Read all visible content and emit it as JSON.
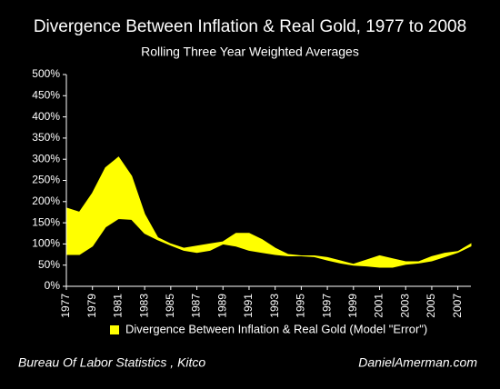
{
  "chart_data": {
    "type": "range_area",
    "title": "Divergence Between Inflation & Real Gold, 1977 to 2008",
    "subtitle": "Rolling Three Year Weighted Averages",
    "source": "Bureau Of Labor Statistics , Kitco",
    "credit": "DanielAmerman.com",
    "x": [
      1977,
      1978,
      1979,
      1980,
      1981,
      1982,
      1983,
      1984,
      1985,
      1986,
      1987,
      1988,
      1989,
      1990,
      1991,
      1992,
      1993,
      1994,
      1995,
      1996,
      1997,
      1998,
      1999,
      2000,
      2001,
      2002,
      2003,
      2004,
      2005,
      2006,
      2007,
      2008
    ],
    "xlim": [
      1977,
      2008
    ],
    "xticks": [
      1977,
      1979,
      1981,
      1983,
      1985,
      1987,
      1989,
      1991,
      1993,
      1995,
      1997,
      1999,
      2001,
      2003,
      2005,
      2007
    ],
    "ylim": [
      0,
      500
    ],
    "yticks": [
      {
        "value": 0,
        "label": "0%"
      },
      {
        "value": 50,
        "label": "50%"
      },
      {
        "value": 100,
        "label": "100%"
      },
      {
        "value": 150,
        "label": "150%"
      },
      {
        "value": 200,
        "label": "200%"
      },
      {
        "value": 250,
        "label": "250%"
      },
      {
        "value": 300,
        "label": "300%"
      },
      {
        "value": 350,
        "label": "350%"
      },
      {
        "value": 400,
        "label": "400%"
      },
      {
        "value": 450,
        "label": "450%"
      },
      {
        "value": 500,
        "label": "500%"
      }
    ],
    "grid": false,
    "series": [
      {
        "name": "Divergence Between Inflation & Real Gold (Model \"Error\")",
        "color": "#ffff00",
        "high": [
          185,
          175,
          220,
          280,
          305,
          260,
          170,
          115,
          100,
          90,
          95,
          100,
          105,
          125,
          125,
          110,
          90,
          75,
          72,
          72,
          68,
          60,
          52,
          62,
          72,
          65,
          58,
          58,
          70,
          78,
          82,
          100
        ],
        "low": [
          75,
          75,
          95,
          140,
          160,
          158,
          125,
          110,
          97,
          85,
          80,
          85,
          100,
          95,
          85,
          80,
          75,
          72,
          72,
          70,
          62,
          55,
          50,
          48,
          45,
          45,
          52,
          55,
          60,
          70,
          80,
          95
        ]
      }
    ]
  }
}
